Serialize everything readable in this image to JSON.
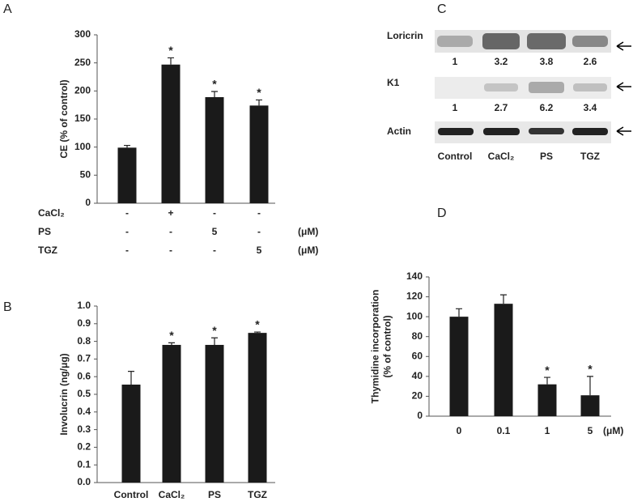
{
  "panels": [
    "A",
    "B",
    "C",
    "D"
  ],
  "chart_data": [
    {
      "type": "bar",
      "ylabel": [
        "CE (% of control)"
      ],
      "categories": [
        null,
        null,
        null,
        null
      ],
      "values": [
        99,
        247,
        189,
        174
      ],
      "errors": [
        4,
        12,
        10,
        10
      ],
      "color": "#1a1a1a",
      "ylim": [
        0,
        300
      ],
      "yticks": [
        0,
        50,
        100,
        150,
        200,
        250,
        300
      ],
      "significance": {
        "marker": "*",
        "indices": [
          1,
          2,
          3
        ]
      },
      "conditions": [
        {
          "name": "CaCl₂",
          "values": [
            "-",
            "+",
            "-",
            "-"
          ]
        },
        {
          "name": "PS",
          "values": [
            "-",
            "-",
            "5",
            "-"
          ],
          "unit": "(μM)"
        },
        {
          "name": "TGZ",
          "values": [
            "-",
            "-",
            "-",
            "5"
          ],
          "unit": "(μM)"
        }
      ]
    },
    {
      "type": "bar",
      "ylabel": [
        "Involucrin (ng/μg)"
      ],
      "categories": [
        "Control",
        "CaCl₂",
        "PS",
        "TGZ"
      ],
      "values": [
        0.555,
        0.78,
        0.78,
        0.848
      ],
      "errors": [
        0.075,
        0.012,
        0.04,
        0.005
      ],
      "color": "#1a1a1a",
      "ylim": [
        0,
        1
      ],
      "yticks": [
        {
          "value": 0,
          "label": "0.0"
        },
        0.1,
        0.2,
        0.3,
        0.4,
        0.5,
        0.6,
        0.7,
        0.8,
        0.9,
        {
          "value": 1,
          "label": "1.0"
        }
      ],
      "significance": {
        "marker": "*",
        "indices": [
          1,
          2,
          3
        ]
      }
    },
    {
      "type": "bar",
      "ylabel": [
        "Thymidine incorporation",
        "(% of control)"
      ],
      "categories": [
        "0",
        "0.1",
        "1",
        "5"
      ],
      "x_unit": "(μM)",
      "values": [
        100,
        113,
        32,
        21
      ],
      "errors": [
        8,
        9,
        7,
        19
      ],
      "color": "#1a1a1a",
      "ylim": [
        0,
        140
      ],
      "yticks": [
        0,
        20,
        40,
        60,
        80,
        100,
        120,
        140
      ],
      "significance": {
        "marker": "*",
        "indices": [
          2,
          3
        ]
      }
    }
  ],
  "blot": {
    "lanes": [
      "Control",
      "CaCl₂",
      "PS",
      "TGZ"
    ],
    "rows": [
      {
        "name": "Loricrin",
        "quantities": [
          "1",
          "3.2",
          "3.8",
          "2.6"
        ]
      },
      {
        "name": "K1",
        "quantities": [
          "1",
          "2.7",
          "6.2",
          "3.4"
        ]
      },
      {
        "name": "Actin"
      }
    ]
  }
}
